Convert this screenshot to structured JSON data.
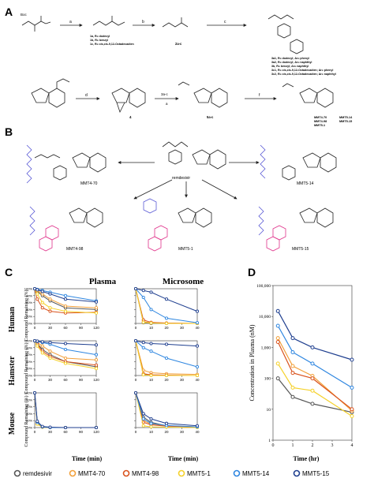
{
  "panels": {
    "A": "A",
    "B": "B",
    "C": "C",
    "D": "D"
  },
  "scheme_A": {
    "steps": [
      "a",
      "b",
      "c",
      "d",
      "e",
      "f",
      "3a-c",
      "a"
    ],
    "compounds_row1": {
      "start_label": "Boc",
      "intermediate1": [
        "1a, R= dodecyl",
        "1b, R= benzyl",
        "1c, R= cis,cis-9,12-Octadecadien"
      ],
      "intermediate2_label": "2a-c",
      "products": [
        "3a1, R= dodecyl; Ar= phenyl",
        "3a2, R= dodecyl; Ar= naphthyl",
        "3b, R= benzyl; Ar= naphthyl",
        "3c1, R= cis,cis-9,12-Octadecadien; Ar= phenyl",
        "3c2, R= cis,cis-9,12-Octadecadien; Ar= naphthyl"
      ]
    },
    "compounds_row2": {
      "nucleoside_label": "4",
      "intermediate_label": "5a-c",
      "final_products": [
        "MMT4-70",
        "MMT4-98",
        "MMT5-1",
        "MMT5-14",
        "MMT5-15"
      ]
    }
  },
  "scheme_B": {
    "center": "remdesivir",
    "compounds": [
      "MMT4-70",
      "MMT5-14",
      "MMT4-98",
      "MMT5-1",
      "MMT5-15"
    ]
  },
  "panel_C": {
    "col_titles": [
      "Plasma",
      "Microsome"
    ],
    "row_titles": [
      "Human",
      "Hamster",
      "Mouse"
    ],
    "ylabel": "Compound Remaining (%)",
    "xlabel": "Time (min)",
    "plasma_xticks": [
      "0",
      "30",
      "60",
      "90",
      "120"
    ],
    "microsome_xticks": [
      "0",
      "10",
      "20",
      "30",
      "40"
    ],
    "yticks": [
      "0%",
      "20%",
      "40%",
      "60%",
      "80%",
      "100%"
    ]
  },
  "panel_D": {
    "ylabel": "Concentration in Plasma (nM)",
    "xlabel": "Time (hr)",
    "yticks": [
      "100,000",
      "10,000",
      "1,000",
      "100",
      "10",
      "1"
    ],
    "xticks": [
      "0",
      "1",
      "2",
      "3",
      "4"
    ]
  },
  "legend": {
    "items": [
      {
        "label": "remdesivir",
        "color": "#555555"
      },
      {
        "label": "MMT4-70",
        "color": "#f2a03a"
      },
      {
        "label": "MMT4-98",
        "color": "#d9531e"
      },
      {
        "label": "MMT5-1",
        "color": "#f5d12a"
      },
      {
        "label": "MMT5-14",
        "color": "#2e86e0"
      },
      {
        "label": "MMT5-15",
        "color": "#1f3f8f"
      }
    ]
  },
  "chart_data": [
    {
      "type": "line",
      "title": "Plasma",
      "row": "Human",
      "x": [
        0,
        5,
        15,
        30,
        60,
        120
      ],
      "ylim": [
        0,
        100
      ],
      "xlim": [
        0,
        120
      ],
      "series": [
        {
          "name": "remdesivir",
          "values": [
            100,
            92,
            80,
            65,
            45,
            40
          ]
        },
        {
          "name": "MMT4-70",
          "values": [
            100,
            95,
            85,
            70,
            50,
            45
          ]
        },
        {
          "name": "MMT4-98",
          "values": [
            100,
            70,
            45,
            35,
            30,
            32
          ]
        },
        {
          "name": "MMT5-1",
          "values": [
            100,
            85,
            60,
            45,
            35,
            30
          ]
        },
        {
          "name": "MMT5-14",
          "values": [
            100,
            98,
            95,
            90,
            80,
            65
          ]
        },
        {
          "name": "MMT5-15",
          "values": [
            100,
            97,
            92,
            85,
            70,
            62
          ]
        }
      ]
    },
    {
      "type": "line",
      "title": "Microsome",
      "row": "Human",
      "x": [
        0,
        5,
        10,
        20,
        40
      ],
      "ylim": [
        0,
        100
      ],
      "xlim": [
        0,
        40
      ],
      "series": [
        {
          "name": "remdesivir",
          "values": [
            100,
            2,
            0,
            0,
            0
          ]
        },
        {
          "name": "MMT4-70",
          "values": [
            100,
            5,
            2,
            1,
            0
          ]
        },
        {
          "name": "MMT4-98",
          "values": [
            100,
            10,
            3,
            1,
            0
          ]
        },
        {
          "name": "MMT5-1",
          "values": [
            100,
            3,
            1,
            0,
            0
          ]
        },
        {
          "name": "MMT5-14",
          "values": [
            100,
            75,
            40,
            15,
            2
          ]
        },
        {
          "name": "MMT5-15",
          "values": [
            100,
            95,
            90,
            70,
            35
          ]
        }
      ]
    },
    {
      "type": "line",
      "title": "Plasma",
      "row": "Hamster",
      "x": [
        0,
        5,
        15,
        30,
        60,
        120
      ],
      "ylim": [
        0,
        100
      ],
      "xlim": [
        0,
        120
      ],
      "series": [
        {
          "name": "remdesivir",
          "values": [
            100,
            92,
            75,
            60,
            40,
            25
          ]
        },
        {
          "name": "MMT4-70",
          "values": [
            100,
            95,
            85,
            70,
            50,
            45
          ]
        },
        {
          "name": "MMT4-98",
          "values": [
            100,
            90,
            70,
            55,
            40,
            30
          ]
        },
        {
          "name": "MMT5-1",
          "values": [
            100,
            85,
            65,
            50,
            35,
            20
          ]
        },
        {
          "name": "MMT5-14",
          "values": [
            100,
            98,
            95,
            90,
            75,
            60
          ]
        },
        {
          "name": "MMT5-15",
          "values": [
            100,
            99,
            97,
            95,
            92,
            88
          ]
        }
      ]
    },
    {
      "type": "line",
      "title": "Microsome",
      "row": "Hamster",
      "x": [
        0,
        5,
        10,
        20,
        40
      ],
      "ylim": [
        0,
        100
      ],
      "xlim": [
        0,
        40
      ],
      "series": [
        {
          "name": "remdesivir",
          "values": [
            100,
            3,
            1,
            0,
            0
          ]
        },
        {
          "name": "MMT4-70",
          "values": [
            100,
            15,
            8,
            5,
            3
          ]
        },
        {
          "name": "MMT4-98",
          "values": [
            100,
            5,
            2,
            1,
            0
          ]
        },
        {
          "name": "MMT5-1",
          "values": [
            100,
            2,
            0,
            0,
            0
          ]
        },
        {
          "name": "MMT5-14",
          "values": [
            100,
            80,
            70,
            50,
            25
          ]
        },
        {
          "name": "MMT5-15",
          "values": [
            100,
            95,
            92,
            90,
            85
          ]
        }
      ]
    },
    {
      "type": "line",
      "title": "Plasma",
      "row": "Mouse",
      "x": [
        0,
        5,
        15,
        30,
        60,
        120
      ],
      "ylim": [
        0,
        100
      ],
      "xlim": [
        0,
        120
      ],
      "series": [
        {
          "name": "remdesivir",
          "values": [
            100,
            15,
            2,
            0,
            0,
            0
          ]
        },
        {
          "name": "MMT4-70",
          "values": [
            100,
            10,
            1,
            0,
            0,
            0
          ]
        },
        {
          "name": "MMT4-98",
          "values": [
            100,
            12,
            2,
            0,
            0,
            0
          ]
        },
        {
          "name": "MMT5-1",
          "values": [
            100,
            10,
            1,
            0,
            0,
            0
          ]
        },
        {
          "name": "MMT5-14",
          "values": [
            100,
            15,
            2,
            0,
            0,
            0
          ]
        },
        {
          "name": "MMT5-15",
          "values": [
            100,
            18,
            3,
            1,
            0,
            0
          ]
        }
      ]
    },
    {
      "type": "line",
      "title": "Microsome",
      "row": "Mouse",
      "x": [
        0,
        5,
        10,
        20,
        40
      ],
      "ylim": [
        0,
        100
      ],
      "xlim": [
        0,
        40
      ],
      "series": [
        {
          "name": "remdesivir",
          "values": [
            100,
            30,
            15,
            5,
            1
          ]
        },
        {
          "name": "MMT4-70",
          "values": [
            100,
            20,
            10,
            5,
            2
          ]
        },
        {
          "name": "MMT4-98",
          "values": [
            100,
            15,
            8,
            4,
            2
          ]
        },
        {
          "name": "MMT5-1",
          "values": [
            100,
            5,
            2,
            1,
            0
          ]
        },
        {
          "name": "MMT5-14",
          "values": [
            100,
            25,
            12,
            6,
            2
          ]
        },
        {
          "name": "MMT5-15",
          "values": [
            100,
            40,
            25,
            12,
            5
          ]
        }
      ]
    },
    {
      "type": "line",
      "title": "",
      "scale": "log",
      "x": [
        0.25,
        1,
        2,
        4
      ],
      "xlim": [
        0,
        4
      ],
      "ylim": [
        1,
        100000
      ],
      "series": [
        {
          "name": "remdesivir",
          "values": [
            100,
            25,
            15,
            8
          ]
        },
        {
          "name": "MMT4-70",
          "values": [
            2000,
            250,
            120,
            9
          ]
        },
        {
          "name": "MMT4-98",
          "values": [
            1500,
            150,
            100,
            10
          ]
        },
        {
          "name": "MMT5-1",
          "values": [
            300,
            50,
            40,
            6
          ]
        },
        {
          "name": "MMT5-14",
          "values": [
            5000,
            700,
            300,
            50
          ]
        },
        {
          "name": "MMT5-15",
          "values": [
            15000,
            2000,
            1000,
            400
          ]
        }
      ]
    }
  ]
}
